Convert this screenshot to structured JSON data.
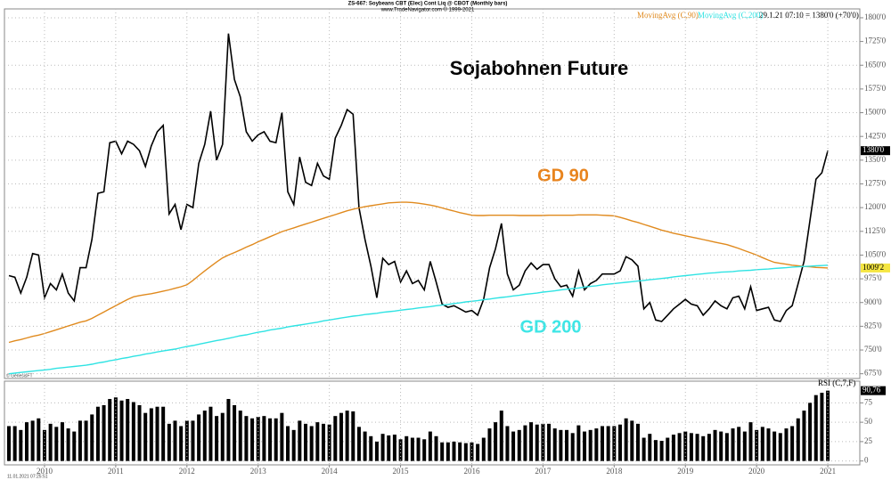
{
  "header": {
    "title": "ZS-667:  Soybeans CBT (Elec) Cont Liq @ CBOT  (Monthly bars)",
    "source": "www.TradeNavigator.com © 1999-2021",
    "quote": "29.1.21 07:10 = 1380'0 (+70'0)",
    "data_vendor": "© GenesisFT",
    "timestamp": "11.01.2021 07:25:51"
  },
  "annotations": {
    "title": "Sojabohnen Future",
    "ma90": "GD 90",
    "ma200": "GD 200"
  },
  "chart_data": [
    {
      "type": "line",
      "ylim": [
        660,
        1828
      ],
      "grid": true,
      "yticks": [
        {
          "value": 675,
          "label": "675'0"
        },
        {
          "value": 750,
          "label": "750'0"
        },
        {
          "value": 825,
          "label": "825'0"
        },
        {
          "value": 900,
          "label": "900'0"
        },
        {
          "value": 975,
          "label": "975'0"
        },
        {
          "value": 1050,
          "label": "1050'0"
        },
        {
          "value": 1125,
          "label": "1125'0"
        },
        {
          "value": 1200,
          "label": "1200'0"
        },
        {
          "value": 1275,
          "label": "1275'0"
        },
        {
          "value": 1350,
          "label": "1350'0"
        },
        {
          "value": 1425,
          "label": "1425'0"
        },
        {
          "value": 1500,
          "label": "1500'0"
        },
        {
          "value": 1575,
          "label": "1575'0"
        },
        {
          "value": 1650,
          "label": "1650'0"
        },
        {
          "value": 1725,
          "label": "1725'0"
        },
        {
          "value": 1800,
          "label": "1800'0"
        }
      ],
      "series": [
        {
          "name": "Soybeans",
          "color": "#000000",
          "last_label": "1380'0",
          "values": [
            985,
            980,
            930,
            980,
            1055,
            1050,
            915,
            960,
            940,
            990,
            930,
            905,
            1010,
            1010,
            1100,
            1245,
            1250,
            1405,
            1410,
            1370,
            1410,
            1400,
            1380,
            1330,
            1395,
            1440,
            1460,
            1180,
            1210,
            1130,
            1210,
            1200,
            1340,
            1400,
            1505,
            1350,
            1400,
            1750,
            1605,
            1550,
            1440,
            1410,
            1430,
            1440,
            1410,
            1405,
            1500,
            1250,
            1210,
            1360,
            1280,
            1270,
            1340,
            1300,
            1290,
            1420,
            1460,
            1510,
            1495,
            1200,
            1100,
            1015,
            915,
            1040,
            1020,
            1030,
            965,
            1000,
            960,
            970,
            940,
            1030,
            965,
            895,
            885,
            890,
            880,
            870,
            875,
            860,
            910,
            1010,
            1070,
            1150,
            990,
            940,
            955,
            1000,
            1025,
            1005,
            1020,
            1020,
            975,
            950,
            955,
            920,
            1000,
            940,
            960,
            970,
            990,
            990,
            990,
            1000,
            1045,
            1035,
            1015,
            880,
            900,
            845,
            840,
            860,
            880,
            895,
            910,
            895,
            890,
            860,
            880,
            905,
            890,
            880,
            915,
            920,
            880,
            950,
            875,
            880,
            885,
            845,
            840,
            875,
            890,
            960,
            1030,
            1160,
            1290,
            1310,
            1380
          ]
        },
        {
          "name": "MovingAvg (C,90)",
          "color": "#e08a1e",
          "last_label": "1009'2",
          "values": [
            774,
            779,
            783,
            788,
            793,
            797,
            802,
            808,
            814,
            820,
            826,
            832,
            838,
            842,
            850,
            860,
            870,
            880,
            890,
            900,
            910,
            918,
            922,
            925,
            928,
            932,
            936,
            940,
            945,
            950,
            956,
            970,
            985,
            1000,
            1014,
            1028,
            1041,
            1050,
            1058,
            1066,
            1075,
            1083,
            1092,
            1100,
            1108,
            1116,
            1124,
            1130,
            1136,
            1142,
            1148,
            1154,
            1160,
            1166,
            1172,
            1178,
            1184,
            1190,
            1195,
            1199,
            1203,
            1206,
            1209,
            1212,
            1215,
            1216,
            1217,
            1217,
            1216,
            1214,
            1211,
            1208,
            1204,
            1199,
            1194,
            1189,
            1184,
            1180,
            1176,
            1175,
            1175,
            1176,
            1176,
            1176,
            1176,
            1176,
            1175,
            1175,
            1175,
            1175,
            1175,
            1176,
            1176,
            1176,
            1176,
            1176,
            1177,
            1177,
            1177,
            1177,
            1176,
            1175,
            1174,
            1169,
            1164,
            1158,
            1153,
            1147,
            1141,
            1135,
            1129,
            1124,
            1119,
            1115,
            1111,
            1107,
            1103,
            1099,
            1095,
            1091,
            1087,
            1083,
            1077,
            1071,
            1064,
            1057,
            1050,
            1042,
            1034,
            1027,
            1024,
            1021,
            1018,
            1016,
            1014,
            1013,
            1011,
            1010,
            1009.25
          ]
        },
        {
          "name": "MovingAvg (C,200)",
          "color": "#2fe3e3",
          "values": [
            675,
            677,
            679,
            681,
            683,
            685,
            687,
            689,
            692,
            694,
            696,
            698,
            700,
            702,
            705,
            709,
            712,
            716,
            719,
            723,
            726,
            730,
            733,
            737,
            740,
            744,
            747,
            750,
            753,
            757,
            761,
            764,
            768,
            772,
            776,
            780,
            783,
            787,
            791,
            795,
            798,
            802,
            806,
            809,
            813,
            816,
            819,
            823,
            826,
            829,
            832,
            835,
            838,
            842,
            845,
            848,
            851,
            854,
            857,
            859,
            862,
            864,
            866,
            869,
            871,
            873,
            876,
            878,
            880,
            883,
            885,
            887,
            890,
            892,
            894,
            897,
            899,
            902,
            904,
            906,
            909,
            911,
            914,
            916,
            918,
            921,
            923,
            926,
            928,
            930,
            933,
            935,
            937,
            940,
            942,
            944,
            946,
            949,
            951,
            953,
            956,
            958,
            960,
            962,
            964,
            966,
            968,
            970,
            972,
            974,
            976,
            978,
            981,
            983,
            985,
            987,
            989,
            991,
            993,
            994,
            996,
            997,
            998,
            1000,
            1001,
            1002,
            1004,
            1005,
            1006,
            1008,
            1009,
            1010,
            1012,
            1013,
            1014,
            1015,
            1016,
            1017,
            1018
          ]
        }
      ]
    },
    {
      "type": "bar",
      "title": "RSI (C,7,F)",
      "ylim": [
        -5,
        103
      ],
      "yticks": [
        0,
        25,
        50,
        75
      ],
      "grid": true,
      "color": "#000000",
      "categories": [
        null,
        null,
        null,
        null,
        null,
        null,
        "2010",
        null,
        null,
        null,
        null,
        null,
        null,
        null,
        null,
        null,
        null,
        null,
        "2011",
        null,
        null,
        null,
        null,
        null,
        null,
        null,
        null,
        null,
        null,
        null,
        "2012",
        null,
        null,
        null,
        null,
        null,
        null,
        null,
        null,
        null,
        null,
        null,
        "2013",
        null,
        null,
        null,
        null,
        null,
        null,
        null,
        null,
        null,
        null,
        null,
        "2014",
        null,
        null,
        null,
        null,
        null,
        null,
        null,
        null,
        null,
        null,
        null,
        "2015",
        null,
        null,
        null,
        null,
        null,
        null,
        null,
        null,
        null,
        null,
        null,
        "2016",
        null,
        null,
        null,
        null,
        null,
        null,
        null,
        null,
        null,
        null,
        null,
        "2017",
        null,
        null,
        null,
        null,
        null,
        null,
        null,
        null,
        null,
        null,
        null,
        "2018",
        null,
        null,
        null,
        null,
        null,
        null,
        null,
        null,
        null,
        null,
        null,
        "2019",
        null,
        null,
        null,
        null,
        null,
        null,
        null,
        null,
        null,
        null,
        null,
        "2020",
        null,
        null,
        null,
        null,
        null,
        null,
        null,
        null,
        null,
        null,
        null,
        "2021"
      ],
      "last_label": "90,76",
      "values": [
        45,
        45,
        40,
        50,
        52,
        55,
        40,
        48,
        44,
        50,
        42,
        38,
        52,
        52,
        60,
        70,
        72,
        80,
        82,
        78,
        80,
        76,
        72,
        62,
        68,
        70,
        70,
        48,
        52,
        45,
        52,
        52,
        60,
        65,
        70,
        58,
        62,
        80,
        72,
        65,
        58,
        55,
        57,
        58,
        55,
        55,
        62,
        45,
        40,
        52,
        48,
        45,
        50,
        48,
        47,
        58,
        62,
        65,
        64,
        44,
        38,
        32,
        25,
        35,
        33,
        34,
        28,
        32,
        30,
        30,
        28,
        38,
        32,
        24,
        24,
        25,
        24,
        23,
        24,
        22,
        30,
        42,
        50,
        65,
        45,
        38,
        40,
        46,
        50,
        47,
        48,
        48,
        42,
        40,
        40,
        36,
        46,
        38,
        40,
        42,
        45,
        45,
        45,
        47,
        55,
        52,
        48,
        30,
        35,
        27,
        26,
        30,
        34,
        36,
        38,
        36,
        35,
        32,
        35,
        40,
        38,
        36,
        42,
        44,
        38,
        50,
        40,
        44,
        42,
        38,
        36,
        42,
        45,
        55,
        65,
        75,
        85,
        88,
        90.76
      ]
    }
  ]
}
